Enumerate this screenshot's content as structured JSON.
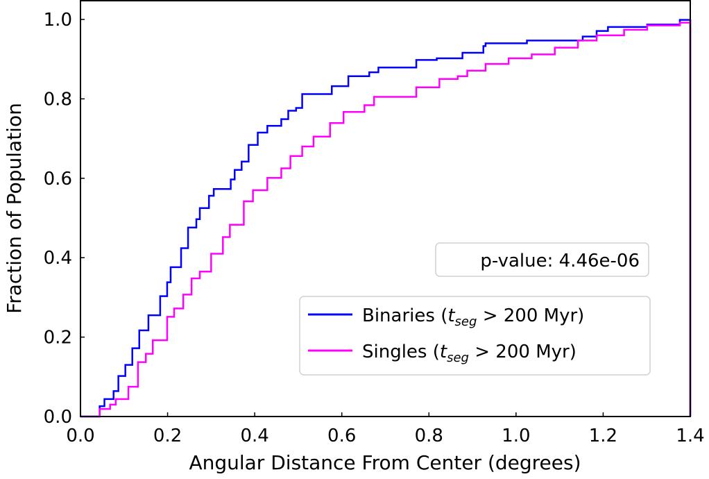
{
  "chart_data": {
    "type": "line",
    "step": true,
    "title": "",
    "xlabel": "Angular Distance From Center (degrees)",
    "ylabel": "Fraction of Population",
    "xlim": [
      0.0,
      1.4
    ],
    "ylim": [
      0.0,
      1.0
    ],
    "xticks": [
      "0.0",
      "0.2",
      "0.4",
      "0.6",
      "0.8",
      "1.0",
      "1.2",
      "1.4"
    ],
    "yticks": [
      "0.0",
      "0.2",
      "0.4",
      "0.6",
      "0.8",
      "1.0"
    ],
    "grid": false,
    "legend_placement": "lower-right",
    "annotation": "p-value: 4.46e-06",
    "series": [
      {
        "name": "Binaries",
        "legend_prefix": "Binaries (",
        "legend_italic": "t",
        "legend_sub": "seg",
        "legend_suffix": " > 200 Myr)",
        "color": "#0000ff",
        "x": [
          0.0,
          0.022,
          0.044,
          0.055,
          0.076,
          0.087,
          0.103,
          0.119,
          0.135,
          0.156,
          0.183,
          0.199,
          0.207,
          0.231,
          0.247,
          0.266,
          0.274,
          0.295,
          0.306,
          0.345,
          0.354,
          0.37,
          0.386,
          0.407,
          0.429,
          0.461,
          0.477,
          0.495,
          0.509,
          0.53,
          0.577,
          0.615,
          0.663,
          0.684,
          0.771,
          0.818,
          0.877,
          0.925,
          0.93,
          1.025,
          1.153,
          1.185,
          1.211,
          1.301,
          1.376,
          1.4
        ],
        "y": [
          0.0,
          0.0,
          0.026,
          0.044,
          0.064,
          0.102,
          0.13,
          0.172,
          0.217,
          0.255,
          0.303,
          0.338,
          0.376,
          0.424,
          0.476,
          0.497,
          0.525,
          0.556,
          0.573,
          0.597,
          0.621,
          0.642,
          0.684,
          0.715,
          0.732,
          0.749,
          0.77,
          0.777,
          0.812,
          0.812,
          0.832,
          0.857,
          0.867,
          0.879,
          0.898,
          0.902,
          0.916,
          0.933,
          0.94,
          0.947,
          0.957,
          0.971,
          0.981,
          0.987,
          0.999,
          1.0
        ]
      },
      {
        "name": "Singles",
        "legend_prefix": "Singles (",
        "legend_italic": "t",
        "legend_sub": "seg",
        "legend_suffix": " > 200 Myr)",
        "color": "#ff00ff",
        "x": [
          0.0,
          0.022,
          0.044,
          0.068,
          0.081,
          0.11,
          0.132,
          0.15,
          0.166,
          0.199,
          0.215,
          0.236,
          0.255,
          0.274,
          0.3,
          0.327,
          0.343,
          0.375,
          0.396,
          0.429,
          0.461,
          0.482,
          0.509,
          0.535,
          0.573,
          0.604,
          0.652,
          0.674,
          0.695,
          0.771,
          0.824,
          0.866,
          0.888,
          0.93,
          0.983,
          1.036,
          1.089,
          1.142,
          1.185,
          1.248,
          1.301,
          1.376,
          1.4
        ],
        "y": [
          0.0,
          0.0,
          0.019,
          0.03,
          0.044,
          0.075,
          0.137,
          0.158,
          0.192,
          0.251,
          0.272,
          0.307,
          0.348,
          0.365,
          0.41,
          0.452,
          0.483,
          0.542,
          0.57,
          0.601,
          0.625,
          0.656,
          0.68,
          0.705,
          0.739,
          0.767,
          0.784,
          0.805,
          0.805,
          0.829,
          0.85,
          0.857,
          0.871,
          0.888,
          0.902,
          0.912,
          0.929,
          0.947,
          0.96,
          0.974,
          0.985,
          0.992,
          1.0
        ]
      }
    ]
  }
}
